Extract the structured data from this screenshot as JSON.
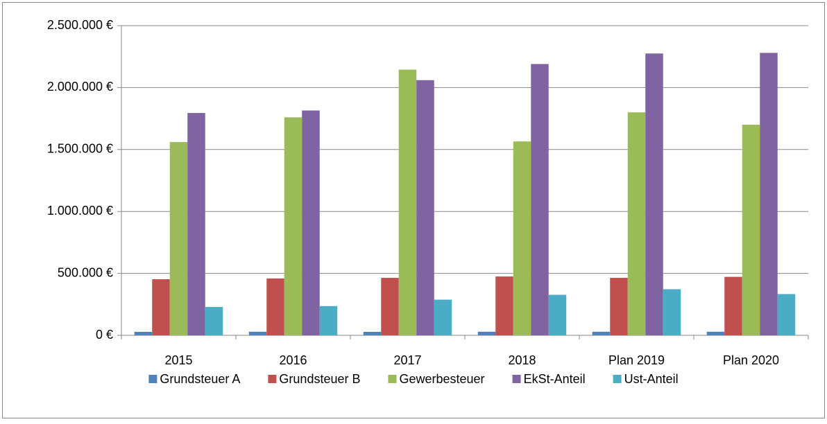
{
  "chart_data": {
    "type": "bar",
    "categories": [
      "2015",
      "2016",
      "2017",
      "2018",
      "Plan 2019",
      "Plan 2020"
    ],
    "series": [
      {
        "name": "Grundsteuer A",
        "color": "#4f81bd",
        "values": [
          28000,
          29000,
          28000,
          29000,
          29000,
          29000
        ]
      },
      {
        "name": "Grundsteuer B",
        "color": "#c0504d",
        "values": [
          453000,
          459000,
          464000,
          475000,
          464000,
          472000
        ]
      },
      {
        "name": "Gewerbesteuer",
        "color": "#9bbb59",
        "values": [
          1560000,
          1760000,
          2145000,
          1565000,
          1800000,
          1700000
        ]
      },
      {
        "name": "EkSt-Anteil",
        "color": "#8064a2",
        "values": [
          1795000,
          1815000,
          2060000,
          2190000,
          2275000,
          2280000
        ]
      },
      {
        "name": "Ust-Anteil",
        "color": "#4bacc6",
        "values": [
          229000,
          236000,
          288000,
          327000,
          372000,
          333000
        ]
      }
    ],
    "ylim": [
      0,
      2500000
    ],
    "yticks": [
      {
        "value": 0,
        "label": "0 €"
      },
      {
        "value": 500000,
        "label": "500.000 €"
      },
      {
        "value": 1000000,
        "label": "1.000.000 €"
      },
      {
        "value": 1500000,
        "label": "1.500.000 €"
      },
      {
        "value": 2000000,
        "label": "2.000.000 €"
      },
      {
        "value": 2500000,
        "label": "2.500.000 €"
      }
    ],
    "grid": true,
    "legend": "bottom"
  }
}
